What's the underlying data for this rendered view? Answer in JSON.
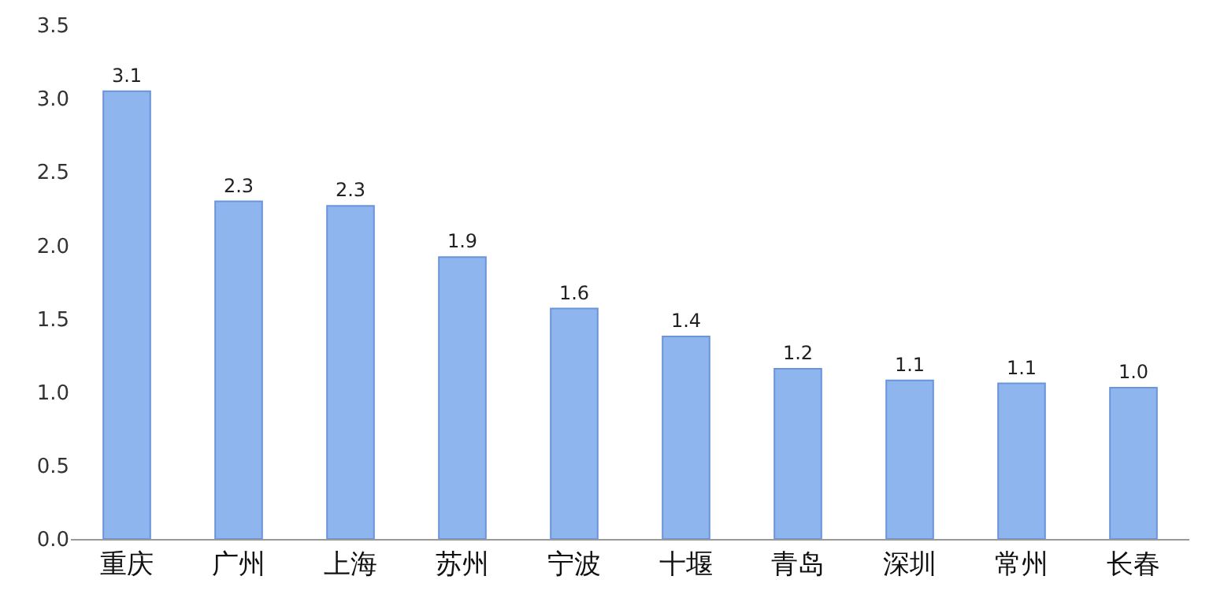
{
  "chart_data": {
    "type": "bar",
    "categories": [
      "重庆",
      "广州",
      "上海",
      "苏州",
      "宁波",
      "十堰",
      "青岛",
      "深圳",
      "常州",
      "长春"
    ],
    "values": [
      3.05,
      2.3,
      2.27,
      1.92,
      1.57,
      1.38,
      1.16,
      1.08,
      1.06,
      1.03
    ],
    "value_labels": [
      "3.1",
      "2.3",
      "2.3",
      "1.9",
      "1.6",
      "1.4",
      "1.2",
      "1.1",
      "1.1",
      "1.0"
    ],
    "color": "#8fb5ee",
    "ylim": [
      0,
      3.5
    ],
    "yticks": [
      {
        "value": 0,
        "label": "0.0"
      },
      {
        "value": 0.5,
        "label": "0.5"
      },
      {
        "value": 1,
        "label": "1.0"
      },
      {
        "value": 1.5,
        "label": "1.5"
      },
      {
        "value": 2,
        "label": "2.0"
      },
      {
        "value": 2.5,
        "label": "2.5"
      },
      {
        "value": 3,
        "label": "3.0"
      },
      {
        "value": 3.5,
        "label": "3.5"
      }
    ],
    "legend": false
  }
}
